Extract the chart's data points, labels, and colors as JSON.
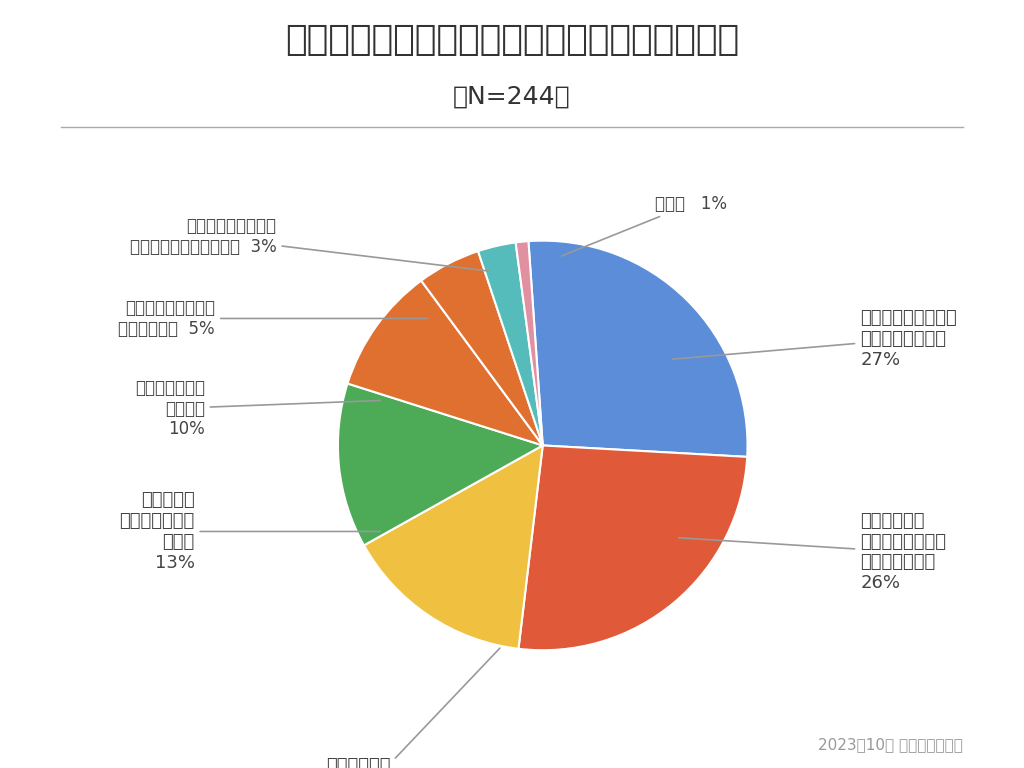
{
  "title": "リノベーションの「希望がある」と答えた理由",
  "subtitle": "（N=244）",
  "footnote": "2023年10月 ゼロリノベ調べ",
  "slices": [
    {
      "pct": 27,
      "color": "#5B8DD9"
    },
    {
      "pct": 26,
      "color": "#E05A3A"
    },
    {
      "pct": 15,
      "color": "#F0C040"
    },
    {
      "pct": 13,
      "color": "#4DAA57"
    },
    {
      "pct": 10,
      "color": "#E07030"
    },
    {
      "pct": 5,
      "color": "#E07030"
    },
    {
      "pct": 3,
      "color": "#55BBBB"
    },
    {
      "pct": 1,
      "color": "#E090A0"
    }
  ],
  "startangle": 94,
  "background_color": "#FFFFFF",
  "title_fontsize": 26,
  "subtitle_fontsize": 18,
  "label_fontsize": 13,
  "small_label_fontsize": 12,
  "footnote_fontsize": 11
}
